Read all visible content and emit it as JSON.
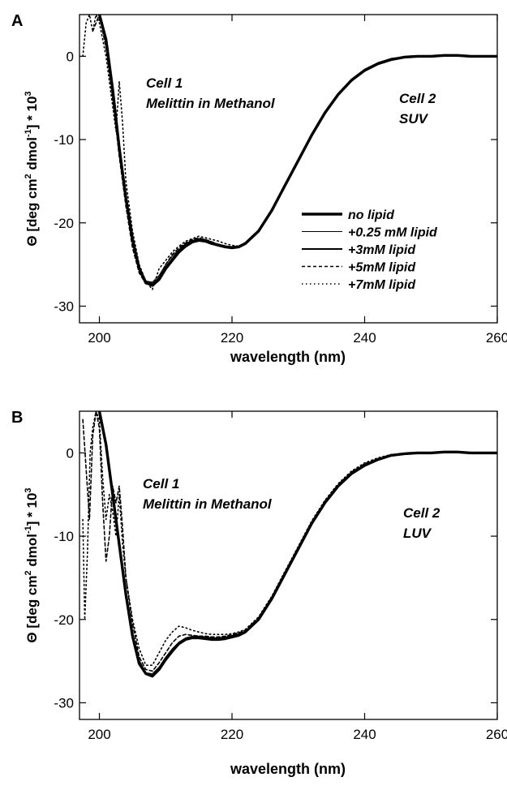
{
  "chart_data": [
    {
      "panel": "A",
      "type": "line",
      "xlabel": "wavelength (nm)",
      "ylabel_parts": {
        "a": "Θ [deg cm",
        "b": "2",
        "c": " dmol",
        "d": "-1",
        "e": "] * 10",
        "f": "3"
      },
      "xlim": [
        197,
        260
      ],
      "ylim": [
        -32,
        5
      ],
      "xticks": [
        200,
        220,
        240,
        260
      ],
      "yticks": [
        0,
        -10,
        -20,
        -30
      ],
      "grid": false,
      "legend_position": "center-right",
      "annotations": [
        {
          "lines": [
            "Cell 1",
            "Melittin in Methanol"
          ]
        },
        {
          "lines": [
            "Cell 2",
            "SUV"
          ]
        }
      ],
      "series": [
        {
          "name": "no lipid",
          "style": "thick",
          "x": [
            200,
            201,
            202,
            203,
            204,
            205,
            206,
            207,
            208,
            209,
            210,
            211,
            212,
            213,
            214,
            215,
            216,
            217,
            218,
            219,
            220,
            221,
            222,
            224,
            226,
            228,
            230,
            232,
            234,
            236,
            238,
            240,
            242,
            244,
            246,
            248,
            250,
            252,
            254,
            256,
            258,
            260
          ],
          "y": [
            5,
            2,
            -4,
            -11,
            -17,
            -22,
            -25.5,
            -27.2,
            -27.5,
            -26.8,
            -25.5,
            -24.5,
            -23.5,
            -22.8,
            -22.3,
            -22.1,
            -22.2,
            -22.5,
            -22.7,
            -22.9,
            -23,
            -22.9,
            -22.5,
            -21,
            -18.5,
            -15.5,
            -12.5,
            -9.5,
            -6.8,
            -4.6,
            -2.9,
            -1.7,
            -0.9,
            -0.4,
            -0.1,
            0,
            0,
            0.1,
            0.1,
            0,
            0,
            0
          ]
        },
        {
          "name": "+0.25 mM lipid",
          "style": "thin",
          "x": [
            200,
            201,
            202,
            203,
            204,
            205,
            206,
            207,
            208,
            209,
            210,
            211,
            212,
            213,
            214,
            215,
            216,
            217,
            218,
            219,
            220,
            221,
            222,
            224,
            226,
            228,
            230,
            232,
            234,
            236,
            238,
            240,
            242,
            244,
            246,
            248,
            250,
            252,
            254,
            256,
            258,
            260
          ],
          "y": [
            5,
            1.5,
            -4.5,
            -11.5,
            -17.5,
            -22.3,
            -25.6,
            -27,
            -27.1,
            -26.3,
            -25,
            -24,
            -23.2,
            -22.5,
            -22.1,
            -21.9,
            -22,
            -22.3,
            -22.6,
            -22.8,
            -22.9,
            -22.8,
            -22.4,
            -20.9,
            -18.4,
            -15.4,
            -12.4,
            -9.4,
            -6.7,
            -4.5,
            -2.8,
            -1.6,
            -0.8,
            -0.3,
            -0.1,
            0,
            0,
            0.1,
            0.1,
            0,
            0,
            0
          ]
        },
        {
          "name": "+3mM lipid",
          "style": "medium",
          "x": [
            200,
            201,
            202,
            203,
            204,
            205,
            206,
            207,
            208,
            209,
            210,
            211,
            212,
            213,
            214,
            215,
            216,
            217,
            218,
            219,
            220,
            221,
            222,
            224,
            226,
            228,
            230,
            232,
            234,
            236,
            238,
            240,
            242,
            244,
            246,
            248,
            250,
            252,
            254,
            256,
            258,
            260
          ],
          "y": [
            5,
            2.2,
            -3.8,
            -10.8,
            -16.8,
            -21.8,
            -25.3,
            -27,
            -27.3,
            -26.6,
            -25.3,
            -24.3,
            -23.3,
            -22.6,
            -22.2,
            -22,
            -22.1,
            -22.4,
            -22.6,
            -22.8,
            -22.9,
            -22.8,
            -22.4,
            -20.9,
            -18.4,
            -15.4,
            -12.4,
            -9.4,
            -6.7,
            -4.5,
            -2.8,
            -1.6,
            -0.8,
            -0.3,
            -0.1,
            0,
            0,
            0.1,
            0.1,
            0,
            0,
            0
          ]
        },
        {
          "name": "+5mM lipid",
          "style": "dashed",
          "x": [
            199,
            200,
            201,
            202,
            203,
            204,
            205,
            206,
            207,
            208,
            209,
            210,
            211,
            212,
            213,
            214,
            215,
            216,
            217,
            218,
            219,
            220,
            221,
            222,
            224,
            226,
            228,
            230,
            232,
            234,
            236,
            238,
            240,
            242,
            244,
            246,
            248,
            250,
            252,
            254,
            256,
            258,
            260
          ],
          "y": [
            3,
            5,
            1,
            -5,
            -12,
            -18,
            -23,
            -26,
            -27.3,
            -27.5,
            -26.5,
            -25,
            -23.8,
            -23,
            -22.4,
            -22,
            -21.8,
            -22,
            -22.3,
            -22.6,
            -22.8,
            -22.9,
            -22.8,
            -22.5,
            -21,
            -18.5,
            -15.5,
            -12.5,
            -9.5,
            -6.8,
            -4.6,
            -2.9,
            -1.7,
            -0.9,
            -0.4,
            -0.1,
            0,
            0,
            0.1,
            0.1,
            0,
            0,
            0
          ]
        },
        {
          "name": "+7mM lipid",
          "style": "dotted",
          "x": [
            197.5,
            198,
            198.5,
            199,
            199.5,
            200,
            201,
            202,
            202.5,
            203,
            203.5,
            204,
            205,
            206,
            207,
            208,
            209,
            210,
            211,
            212,
            213,
            214,
            215,
            216,
            217,
            218,
            219,
            220,
            221,
            222,
            224,
            226,
            228,
            230,
            232,
            234,
            236,
            238,
            240,
            242,
            244,
            246,
            248,
            250,
            252,
            254,
            256,
            258,
            260
          ],
          "y": [
            0,
            4,
            5,
            3,
            5,
            4,
            0,
            -6,
            -9,
            -3,
            -8,
            -15,
            -21,
            -25,
            -27,
            -28,
            -25.5,
            -24.5,
            -23.5,
            -22.8,
            -22.2,
            -21.9,
            -21.6,
            -21.8,
            -22,
            -22.2,
            -22.5,
            -22.7,
            -22.8,
            -22.5,
            -21,
            -18.5,
            -15.5,
            -12.5,
            -9.5,
            -6.8,
            -4.6,
            -2.9,
            -1.7,
            -0.9,
            -0.4,
            -0.1,
            0,
            0,
            0.1,
            0.1,
            0,
            0,
            0
          ]
        }
      ]
    },
    {
      "panel": "B",
      "type": "line",
      "xlabel": "wavelength (nm)",
      "ylabel_parts": {
        "a": "Θ [deg cm",
        "b": "2",
        "c": " dmol",
        "d": "-1",
        "e": "] * 10",
        "f": "3"
      },
      "xlim": [
        197,
        260
      ],
      "ylim": [
        -32,
        5
      ],
      "xticks": [
        200,
        220,
        240,
        260
      ],
      "yticks": [
        0,
        -10,
        -20,
        -30
      ],
      "grid": false,
      "annotations": [
        {
          "lines": [
            "Cell 1",
            "Melittin in Methanol"
          ]
        },
        {
          "lines": [
            "Cell 2",
            "LUV"
          ]
        }
      ],
      "series": [
        {
          "name": "no lipid",
          "style": "thick",
          "x": [
            200,
            201,
            202,
            203,
            204,
            205,
            206,
            207,
            208,
            209,
            210,
            211,
            212,
            213,
            214,
            215,
            216,
            217,
            218,
            219,
            220,
            221,
            222,
            224,
            226,
            228,
            230,
            232,
            234,
            236,
            238,
            240,
            242,
            244,
            246,
            248,
            250,
            252,
            254,
            256,
            258,
            260
          ],
          "y": [
            5,
            1,
            -5,
            -11,
            -17,
            -22,
            -25.3,
            -26.5,
            -26.8,
            -26,
            -24.8,
            -23.8,
            -22.9,
            -22.4,
            -22.2,
            -22.2,
            -22.3,
            -22.4,
            -22.4,
            -22.3,
            -22.1,
            -21.9,
            -21.5,
            -20,
            -17.5,
            -14.5,
            -11.5,
            -8.5,
            -6,
            -4,
            -2.5,
            -1.5,
            -0.8,
            -0.3,
            -0.1,
            0,
            0,
            0.1,
            0.1,
            0,
            0,
            0
          ]
        },
        {
          "name": "+0.25 mM lipid",
          "style": "thin",
          "x": [
            200,
            201,
            202,
            203,
            204,
            205,
            206,
            207,
            208,
            209,
            210,
            211,
            212,
            213,
            214,
            215,
            216,
            217,
            218,
            219,
            220,
            221,
            222,
            224,
            226,
            228,
            230,
            232,
            234,
            236,
            238,
            240,
            242,
            244,
            246,
            248,
            250,
            252,
            254,
            256,
            258,
            260
          ],
          "y": [
            5,
            0.5,
            -5.5,
            -11.5,
            -17.5,
            -22.3,
            -25.4,
            -26.4,
            -26.5,
            -25.7,
            -24.5,
            -23.5,
            -22.7,
            -22.2,
            -22,
            -22,
            -22.1,
            -22.2,
            -22.2,
            -22.1,
            -21.9,
            -21.7,
            -21.4,
            -19.9,
            -17.4,
            -14.4,
            -11.4,
            -8.4,
            -5.9,
            -3.9,
            -2.4,
            -1.4,
            -0.7,
            -0.3,
            -0.1,
            0,
            0,
            0.1,
            0.1,
            0,
            0,
            0
          ]
        },
        {
          "name": "+3mM lipid",
          "style": "medium",
          "x": [
            200,
            201,
            202,
            203,
            204,
            205,
            206,
            207,
            208,
            209,
            210,
            211,
            212,
            213,
            214,
            215,
            216,
            217,
            218,
            219,
            220,
            221,
            222,
            224,
            226,
            228,
            230,
            232,
            234,
            236,
            238,
            240,
            242,
            244,
            246,
            248,
            250,
            252,
            254,
            256,
            258,
            260
          ],
          "y": [
            5,
            1.2,
            -4.8,
            -10.8,
            -16.8,
            -21.8,
            -25,
            -26.4,
            -26.7,
            -25.9,
            -24.7,
            -23.7,
            -22.8,
            -22.3,
            -22.1,
            -22.1,
            -22.2,
            -22.3,
            -22.3,
            -22.2,
            -22,
            -21.8,
            -21.5,
            -20,
            -17.5,
            -14.5,
            -11.5,
            -8.5,
            -6,
            -4,
            -2.5,
            -1.5,
            -0.8,
            -0.3,
            -0.1,
            0,
            0,
            0.1,
            0.1,
            0,
            0,
            0
          ]
        },
        {
          "name": "+5mM lipid",
          "style": "dashed",
          "x": [
            197.5,
            198,
            198.5,
            199,
            199.5,
            200,
            200.5,
            201,
            201.5,
            202,
            202.5,
            203,
            203.5,
            204,
            205,
            206,
            207,
            208,
            209,
            210,
            211,
            212,
            213,
            214,
            215,
            216,
            217,
            218,
            219,
            220,
            221,
            222,
            224,
            226,
            228,
            230,
            232,
            234,
            236,
            238,
            240,
            242,
            244,
            246,
            248,
            250,
            252,
            254,
            256,
            258,
            260
          ],
          "y": [
            4,
            -2,
            -8,
            2,
            5,
            3,
            -6,
            -13,
            -10,
            -4,
            -6,
            -4,
            -9,
            -15,
            -20.5,
            -24.5,
            -26,
            -26.2,
            -25.2,
            -24,
            -22.8,
            -22,
            -21.8,
            -21.9,
            -22,
            -22,
            -22.1,
            -22.1,
            -22,
            -21.8,
            -21.6,
            -21.3,
            -19.8,
            -17.3,
            -14.3,
            -11.3,
            -8.3,
            -5.8,
            -3.8,
            -2.3,
            -1.3,
            -0.7,
            -0.3,
            -0.1,
            0,
            0,
            0.1,
            0.1,
            0,
            0,
            0
          ]
        },
        {
          "name": "+7mM lipid",
          "style": "dotted",
          "x": [
            197.5,
            197.8,
            198.2,
            198.6,
            199,
            199.5,
            200,
            200.5,
            201,
            201.5,
            202,
            202.5,
            203,
            203.5,
            204,
            205,
            206,
            207,
            208,
            209,
            210,
            211,
            212,
            213,
            214,
            215,
            216,
            217,
            218,
            219,
            220,
            221,
            222,
            224,
            226,
            228,
            230,
            232,
            234,
            236,
            238,
            240,
            242,
            244,
            246,
            248,
            250,
            252,
            254,
            256,
            258,
            260
          ],
          "y": [
            -8,
            -20,
            -12,
            0,
            3,
            5,
            4,
            -3,
            -8,
            -5,
            -7,
            -10,
            -5,
            -11,
            -15,
            -20,
            -23.5,
            -25.5,
            -25.5,
            -24,
            -22.5,
            -21.5,
            -20.8,
            -21,
            -21.3,
            -21.5,
            -21.7,
            -21.8,
            -21.8,
            -21.8,
            -21.7,
            -21.5,
            -21.2,
            -19.7,
            -17.2,
            -14.2,
            -11.2,
            -8.2,
            -5.7,
            -3.7,
            -2.2,
            -1.2,
            -0.6,
            -0.2,
            -0.1,
            0,
            0,
            0.1,
            0.1,
            0,
            0,
            0
          ]
        }
      ]
    }
  ]
}
